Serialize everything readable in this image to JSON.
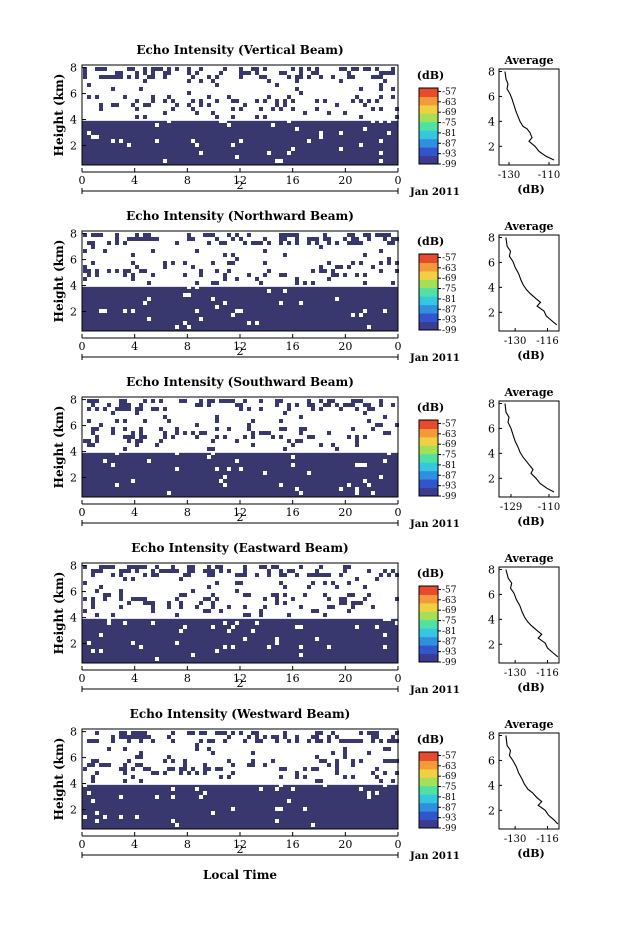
{
  "figure": {
    "xlabel": "Local Time",
    "date_label": "Jan 2011"
  },
  "chart_data": [
    {
      "type": "heatmap",
      "title": "Echo Intensity (Vertical Beam)",
      "ylabel": "Height (km)",
      "x_ticks": [
        "0",
        "4",
        "8",
        "12",
        "16",
        "20",
        "0"
      ],
      "x_range": [
        0,
        24
      ],
      "day_label": "2",
      "y_ticks": [
        "2",
        "4",
        "6",
        "8"
      ],
      "y_range": [
        0.5,
        8.2
      ],
      "solid_layer_top_km": 3.9,
      "colorbar": {
        "unit": "(dB)",
        "ticks": [
          "-57",
          "-63",
          "-69",
          "-75",
          "-81",
          "-87",
          "-93",
          "-99"
        ],
        "range": [
          -99,
          -55
        ]
      },
      "fill_color": "#38386e",
      "profile": {
        "title": "Average",
        "xlabel": "(dB)",
        "x_ticks": [
          "-130",
          "-110"
        ],
        "x_range": [
          -135,
          -105
        ],
        "y_ticks": [
          "2",
          "4",
          "6",
          "8"
        ],
        "y_range": [
          0.5,
          8.2
        ],
        "points": [
          [
            -132,
            8.0
          ],
          [
            -131.5,
            7.4
          ],
          [
            -130.5,
            7.0
          ],
          [
            -131,
            6.6
          ],
          [
            -129.5,
            6.2
          ],
          [
            -128.5,
            5.8
          ],
          [
            -127.5,
            5.3
          ],
          [
            -126.5,
            4.8
          ],
          [
            -125.5,
            4.4
          ],
          [
            -124.5,
            4.0
          ],
          [
            -123,
            3.6
          ],
          [
            -121,
            3.4
          ],
          [
            -119.5,
            3.1
          ],
          [
            -118.5,
            2.7
          ],
          [
            -120,
            2.4
          ],
          [
            -117,
            2.0
          ],
          [
            -115,
            1.6
          ],
          [
            -111.5,
            1.2
          ],
          [
            -107.5,
            0.9
          ]
        ]
      }
    },
    {
      "type": "heatmap",
      "title": "Echo Intensity (Northward Beam)",
      "ylabel": "Height (km)",
      "x_ticks": [
        "0",
        "4",
        "8",
        "12",
        "16",
        "20",
        "0"
      ],
      "x_range": [
        0,
        24
      ],
      "day_label": "2",
      "y_ticks": [
        "2",
        "4",
        "6",
        "8"
      ],
      "y_range": [
        0.5,
        8.2
      ],
      "solid_layer_top_km": 3.9,
      "colorbar": {
        "unit": "(dB)",
        "ticks": [
          "-57",
          "-63",
          "-69",
          "-75",
          "-81",
          "-87",
          "-93",
          "-99"
        ],
        "range": [
          -99,
          -55
        ]
      },
      "fill_color": "#38386e",
      "profile": {
        "title": "Average",
        "xlabel": "(dB)",
        "x_ticks": [
          "-130",
          "-116"
        ],
        "x_range": [
          -137,
          -111
        ],
        "y_ticks": [
          "2",
          "4",
          "6",
          "8"
        ],
        "y_range": [
          0.5,
          8.2
        ],
        "points": [
          [
            -134,
            8.0
          ],
          [
            -133.5,
            7.3
          ],
          [
            -132,
            6.9
          ],
          [
            -132.5,
            6.5
          ],
          [
            -131,
            6.1
          ],
          [
            -130,
            5.6
          ],
          [
            -128.5,
            5.1
          ],
          [
            -127.5,
            4.6
          ],
          [
            -126.5,
            4.2
          ],
          [
            -125,
            3.8
          ],
          [
            -123.5,
            3.5
          ],
          [
            -121,
            3.1
          ],
          [
            -119,
            2.8
          ],
          [
            -120.5,
            2.5
          ],
          [
            -117.5,
            2.1
          ],
          [
            -116.5,
            1.7
          ],
          [
            -114,
            1.3
          ],
          [
            -112,
            1.0
          ]
        ]
      }
    },
    {
      "type": "heatmap",
      "title": "Echo Intensity (Southward Beam)",
      "ylabel": "Height (km)",
      "x_ticks": [
        "0",
        "4",
        "8",
        "12",
        "16",
        "20",
        "0"
      ],
      "x_range": [
        0,
        24
      ],
      "day_label": "2",
      "y_ticks": [
        "2",
        "4",
        "6",
        "8"
      ],
      "y_range": [
        0.5,
        8.2
      ],
      "solid_layer_top_km": 3.9,
      "colorbar": {
        "unit": "(dB)",
        "ticks": [
          "-57",
          "-63",
          "-69",
          "-75",
          "-81",
          "-87",
          "-93",
          "-99"
        ],
        "range": [
          -99,
          -55
        ]
      },
      "fill_color": "#38386e",
      "profile": {
        "title": "Average",
        "xlabel": "(dB)",
        "x_ticks": [
          "-129",
          "-110"
        ],
        "x_range": [
          -135,
          -105
        ],
        "y_ticks": [
          "2",
          "4",
          "6",
          "8"
        ],
        "y_range": [
          0.5,
          8.2
        ],
        "points": [
          [
            -132,
            8.0
          ],
          [
            -131.5,
            7.3
          ],
          [
            -130,
            6.9
          ],
          [
            -130.5,
            6.5
          ],
          [
            -129,
            6.0
          ],
          [
            -128,
            5.5
          ],
          [
            -127,
            5.0
          ],
          [
            -125.5,
            4.5
          ],
          [
            -124.5,
            4.1
          ],
          [
            -123,
            3.7
          ],
          [
            -121.5,
            3.4
          ],
          [
            -119.5,
            3.0
          ],
          [
            -118,
            2.7
          ],
          [
            -119,
            2.4
          ],
          [
            -116.5,
            2.0
          ],
          [
            -114.5,
            1.6
          ],
          [
            -111,
            1.2
          ],
          [
            -107.5,
            0.9
          ]
        ]
      }
    },
    {
      "type": "heatmap",
      "title": "Echo Intensity (Eastward Beam)",
      "ylabel": "Height (km)",
      "x_ticks": [
        "0",
        "4",
        "8",
        "12",
        "16",
        "20",
        "0"
      ],
      "x_range": [
        0,
        24
      ],
      "day_label": "2",
      "y_ticks": [
        "2",
        "4",
        "6",
        "8"
      ],
      "y_range": [
        0.5,
        8.2
      ],
      "solid_layer_top_km": 3.9,
      "colorbar": {
        "unit": "(dB)",
        "ticks": [
          "-57",
          "-63",
          "-69",
          "-75",
          "-81",
          "-87",
          "-93",
          "-99"
        ],
        "range": [
          -99,
          -55
        ]
      },
      "fill_color": "#38386e",
      "profile": {
        "title": "Average",
        "xlabel": "(dB)",
        "x_ticks": [
          "-130",
          "-116"
        ],
        "x_range": [
          -137,
          -111
        ],
        "y_ticks": [
          "2",
          "4",
          "6",
          "8"
        ],
        "y_range": [
          0.5,
          8.2
        ],
        "points": [
          [
            -134,
            8.0
          ],
          [
            -133,
            7.3
          ],
          [
            -131.5,
            6.9
          ],
          [
            -132,
            6.5
          ],
          [
            -130.5,
            6.1
          ],
          [
            -129.5,
            5.6
          ],
          [
            -128,
            5.1
          ],
          [
            -127,
            4.6
          ],
          [
            -126,
            4.2
          ],
          [
            -124.5,
            3.8
          ],
          [
            -123,
            3.5
          ],
          [
            -120.5,
            3.1
          ],
          [
            -118.5,
            2.8
          ],
          [
            -120,
            2.5
          ],
          [
            -117,
            2.1
          ],
          [
            -116,
            1.7
          ],
          [
            -113.5,
            1.3
          ],
          [
            -111.5,
            1.0
          ]
        ]
      }
    },
    {
      "type": "heatmap",
      "title": "Echo Intensity (Westward Beam)",
      "ylabel": "Height (km)",
      "x_ticks": [
        "0",
        "4",
        "8",
        "12",
        "16",
        "20",
        "0"
      ],
      "x_range": [
        0,
        24
      ],
      "day_label": "2",
      "y_ticks": [
        "2",
        "4",
        "6",
        "8"
      ],
      "y_range": [
        0.5,
        8.2
      ],
      "solid_layer_top_km": 3.9,
      "colorbar": {
        "unit": "(dB)",
        "ticks": [
          "-57",
          "-63",
          "-69",
          "-75",
          "-81",
          "-87",
          "-93",
          "-99"
        ],
        "range": [
          -99,
          -55
        ]
      },
      "fill_color": "#38386e",
      "profile": {
        "title": "Average",
        "xlabel": "(dB)",
        "x_ticks": [
          "-130",
          "-116"
        ],
        "x_range": [
          -137,
          -111
        ],
        "y_ticks": [
          "2",
          "4",
          "6",
          "8"
        ],
        "y_range": [
          0.5,
          8.2
        ],
        "points": [
          [
            -134,
            8.0
          ],
          [
            -133.5,
            7.2
          ],
          [
            -132,
            6.8
          ],
          [
            -132.5,
            6.4
          ],
          [
            -131,
            6.0
          ],
          [
            -129.5,
            5.5
          ],
          [
            -128.5,
            5.0
          ],
          [
            -127,
            4.5
          ],
          [
            -126,
            4.1
          ],
          [
            -124.5,
            3.7
          ],
          [
            -122.5,
            3.4
          ],
          [
            -120.5,
            3.0
          ],
          [
            -118.5,
            2.7
          ],
          [
            -120,
            2.4
          ],
          [
            -117,
            2.0
          ],
          [
            -115.5,
            1.6
          ],
          [
            -113,
            1.2
          ],
          [
            -111.5,
            0.9
          ]
        ]
      }
    }
  ]
}
